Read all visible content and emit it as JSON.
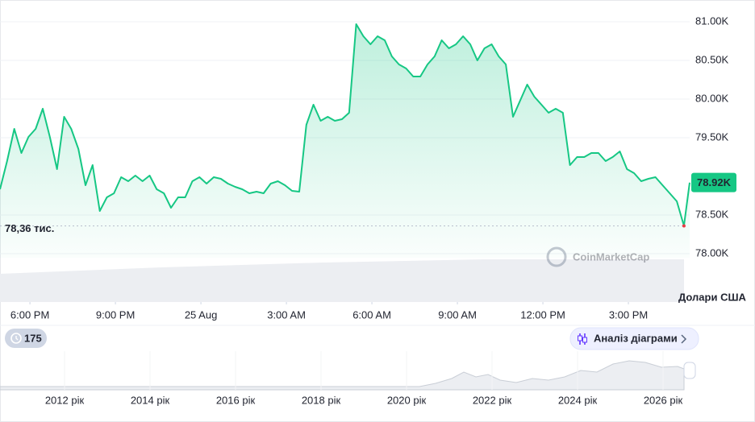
{
  "chart_data": {
    "type": "line",
    "color": "#16c784",
    "x": [
      0,
      0.25,
      0.5,
      0.75,
      1,
      1.25,
      1.5,
      1.75,
      2,
      2.25,
      2.5,
      2.75,
      3,
      3.25,
      3.5,
      3.75,
      4,
      4.25,
      4.5,
      4.75,
      5,
      5.25,
      5.5,
      5.75,
      6,
      6.25,
      6.5,
      6.75,
      7,
      7.25,
      7.5,
      7.75,
      8,
      8.25,
      8.5,
      8.75,
      9,
      9.25,
      9.5,
      9.75,
      10,
      10.25,
      10.5,
      10.75,
      11,
      11.25,
      11.5,
      11.75,
      12,
      12.25,
      12.5,
      12.75,
      13,
      13.25,
      13.5,
      13.75,
      14,
      14.25,
      14.5,
      14.75,
      15,
      15.25,
      15.5,
      15.75,
      16,
      16.25,
      16.5,
      16.75,
      17,
      17.25,
      17.5,
      17.75,
      18,
      18.25,
      18.5,
      18.75,
      19,
      19.25,
      19.5,
      19.75,
      20,
      20.25,
      20.5,
      20.75,
      21,
      21.25,
      21.5,
      21.75,
      22,
      22.25,
      22.5,
      22.75,
      23,
      23.25,
      23.5,
      23.75,
      24,
      24.2
    ],
    "values": [
      78833,
      79198,
      79615,
      79302,
      79510,
      79615,
      79875,
      79510,
      79094,
      79771,
      79615,
      79354,
      78885,
      79146,
      78552,
      78729,
      78781,
      78990,
      78938,
      79010,
      78938,
      79010,
      78833,
      78781,
      78594,
      78729,
      78729,
      78938,
      78990,
      78906,
      78990,
      78969,
      78906,
      78865,
      78833,
      78781,
      78802,
      78781,
      78906,
      78938,
      78885,
      78813,
      78802,
      79667,
      79927,
      79719,
      79771,
      79719,
      79740,
      79823,
      80969,
      80813,
      80708,
      80813,
      80760,
      80552,
      80448,
      80396,
      80292,
      80292,
      80448,
      80552,
      80760,
      80656,
      80708,
      80813,
      80708,
      80500,
      80656,
      80708,
      80552,
      80448,
      79771,
      79979,
      80188,
      80031,
      79927,
      79823,
      79875,
      79823,
      79146,
      79250,
      79250,
      79302,
      79302,
      79198,
      79250,
      79323,
      79094,
      79042,
      78938,
      78969,
      78990,
      78885,
      78781,
      78677,
      78360,
      78920
    ],
    "xlim": [
      0,
      24.2
    ],
    "xticks": [
      {
        "value": 1.05,
        "label": "6:00 PM"
      },
      {
        "value": 4.05,
        "label": "9:00 PM"
      },
      {
        "value": 7.05,
        "label": "25 Aug"
      },
      {
        "value": 10.05,
        "label": "3:00 AM"
      },
      {
        "value": 13.05,
        "label": "6:00 AM"
      },
      {
        "value": 16.05,
        "label": "9:00 AM"
      },
      {
        "value": 19.05,
        "label": "12:00 PM"
      },
      {
        "value": 22.05,
        "label": "3:00 PM"
      }
    ],
    "ylim": [
      77400,
      81250
    ],
    "yticks": [
      {
        "value": 81000,
        "label": "81.00K"
      },
      {
        "value": 80500,
        "label": "80.50K"
      },
      {
        "value": 80000,
        "label": "80.00K"
      },
      {
        "value": 79500,
        "label": "79.50K"
      },
      {
        "value": 78500,
        "label": "78.50K"
      },
      {
        "value": 78000,
        "label": "78.00K"
      }
    ],
    "grid": true,
    "current": {
      "value": 78920,
      "label": "78.92K"
    },
    "min": {
      "value": 78360,
      "label": "78,36 тис."
    },
    "watermark": "CoinMarketCap",
    "currency": "Долари США",
    "badge": "175",
    "button": "Аналіз діаграми",
    "navigator_years": [
      "2012 рік",
      "2014 рік",
      "2016 рік",
      "2018 рік",
      "2020 рік",
      "2022 рік",
      "2024 рік",
      "2026 рік"
    ]
  }
}
